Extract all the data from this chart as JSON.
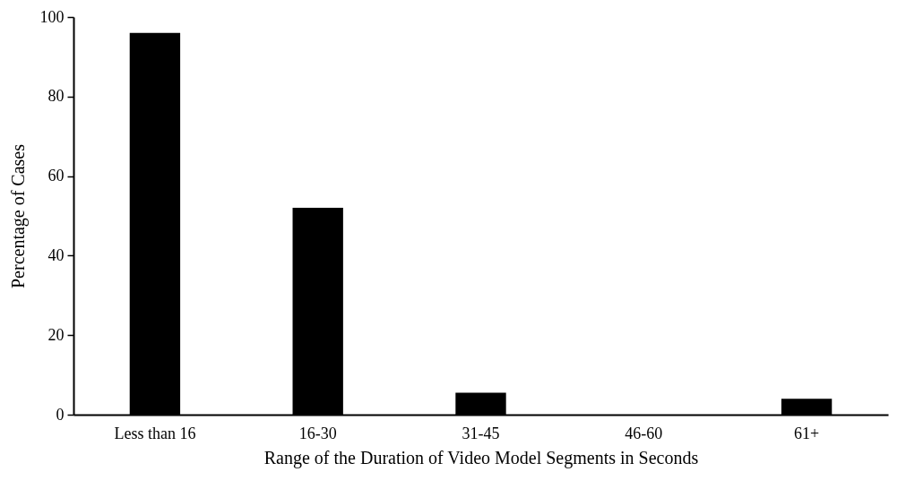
{
  "chart_data": {
    "type": "bar",
    "xlabel": "Range of the Duration of Video Model Segments in Seconds",
    "ylabel": "Percentage of Cases",
    "categories": [
      "Less than 16",
      "16-30",
      "31-45",
      "46-60",
      "61+"
    ],
    "values": [
      96,
      52,
      5.5,
      0,
      4
    ],
    "color": "#000000",
    "ylim": [
      0,
      100
    ],
    "yticks": [
      0,
      20,
      40,
      60,
      80,
      100
    ],
    "grid": false
  }
}
